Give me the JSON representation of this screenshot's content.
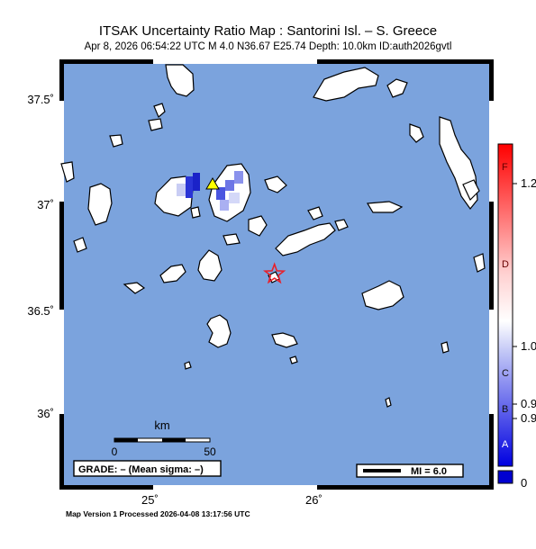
{
  "header": {
    "title": "ITSAK Uncertainty Ratio Map : Santorini Isl. – S. Greece",
    "subtitle": "Apr  8, 2026 06:54:22 UTC    M 4.0    N36.67 E25.74    Depth: 10.0km    ID:auth2026gvtl"
  },
  "axes": {
    "lat_ticks": [
      "37.5˚",
      "37˚",
      "36.5˚",
      "36˚"
    ],
    "lon_ticks": [
      "25˚",
      "26˚"
    ]
  },
  "scalebar": {
    "unit": "km",
    "min": "0",
    "max": "50"
  },
  "grade": {
    "label": "GRADE: – (Mean sigma: –)"
  },
  "mi_legend": {
    "label": "MI = 6.0"
  },
  "colorbar": {
    "letters": [
      "F",
      "D",
      "C",
      "B",
      "A"
    ],
    "values": [
      "1.2",
      "1.0",
      "0.9",
      "0.9",
      "0"
    ]
  },
  "epicenter": {
    "lat": 36.67,
    "lon": 25.74
  },
  "colors": {
    "sea": "#7ba3dd",
    "land": "#ffffff",
    "epicenter": "#e8202a",
    "station": "#ffff00"
  },
  "footer": {
    "text": "Map Version 1 Processed 2026-04-08 13:17:56 UTC"
  }
}
